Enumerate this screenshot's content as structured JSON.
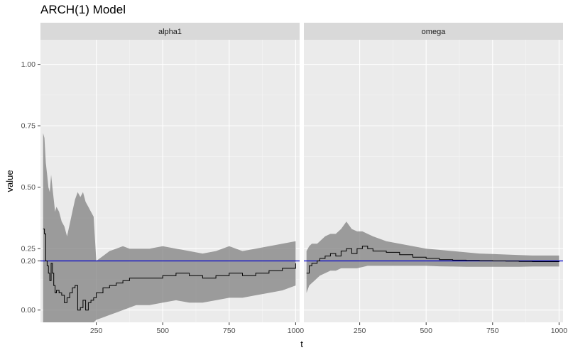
{
  "chart_data": {
    "type": "line",
    "title": "ARCH(1) Model",
    "xlabel": "t",
    "ylabel": "value",
    "xlim": [
      40,
      1015
    ],
    "ylim": [
      -0.05,
      1.1
    ],
    "x_ticks": [
      250,
      500,
      750,
      1000
    ],
    "y_ticks": [
      0.0,
      0.2,
      0.25,
      0.5,
      0.75,
      1.0
    ],
    "y_tick_labels": [
      "0.00",
      "0.20",
      "0.25",
      "0.50",
      "0.75",
      "1.00"
    ],
    "grid": true,
    "reference_line": {
      "y": 0.2,
      "color": "#0000cc"
    },
    "series_color": "#000000",
    "band_color": "#808080",
    "panels": [
      {
        "name": "alpha1",
        "x": [
          50,
          55,
          60,
          65,
          70,
          75,
          80,
          85,
          90,
          95,
          100,
          110,
          120,
          130,
          140,
          150,
          160,
          170,
          180,
          190,
          200,
          210,
          220,
          230,
          240,
          250,
          275,
          300,
          325,
          350,
          375,
          400,
          450,
          500,
          550,
          600,
          650,
          700,
          750,
          800,
          850,
          900,
          950,
          1000
        ],
        "values": [
          0.33,
          0.31,
          0.2,
          0.18,
          0.15,
          0.12,
          0.19,
          0.15,
          0.1,
          0.07,
          0.08,
          0.07,
          0.06,
          0.03,
          0.05,
          0.07,
          0.09,
          0.1,
          0.0,
          0.01,
          0.04,
          0.0,
          0.03,
          0.04,
          0.05,
          0.07,
          0.09,
          0.1,
          0.11,
          0.12,
          0.13,
          0.13,
          0.13,
          0.14,
          0.15,
          0.14,
          0.13,
          0.14,
          0.15,
          0.14,
          0.15,
          0.16,
          0.17,
          0.19
        ],
        "lower": [
          -0.05,
          -0.05,
          -0.05,
          -0.05,
          -0.05,
          -0.05,
          -0.05,
          -0.05,
          -0.05,
          -0.05,
          -0.05,
          -0.05,
          -0.05,
          -0.05,
          -0.05,
          -0.05,
          -0.05,
          -0.05,
          -0.05,
          -0.05,
          -0.05,
          -0.05,
          -0.05,
          -0.05,
          -0.05,
          -0.04,
          -0.03,
          -0.02,
          -0.01,
          0.0,
          0.01,
          0.02,
          0.02,
          0.03,
          0.04,
          0.03,
          0.03,
          0.04,
          0.05,
          0.05,
          0.06,
          0.07,
          0.08,
          0.1
        ],
        "upper": [
          0.72,
          0.7,
          0.6,
          0.55,
          0.5,
          0.48,
          0.55,
          0.5,
          0.45,
          0.4,
          0.42,
          0.4,
          0.36,
          0.34,
          0.3,
          0.35,
          0.4,
          0.45,
          0.48,
          0.46,
          0.48,
          0.44,
          0.42,
          0.4,
          0.38,
          0.2,
          0.22,
          0.24,
          0.25,
          0.26,
          0.25,
          0.25,
          0.25,
          0.26,
          0.25,
          0.24,
          0.23,
          0.24,
          0.26,
          0.24,
          0.25,
          0.26,
          0.27,
          0.28
        ]
      },
      {
        "name": "omega",
        "x": [
          50,
          60,
          70,
          80,
          90,
          100,
          120,
          140,
          160,
          180,
          200,
          220,
          240,
          260,
          280,
          300,
          350,
          400,
          450,
          500,
          550,
          600,
          650,
          700,
          750,
          800,
          850,
          900,
          950,
          1000
        ],
        "values": [
          0.15,
          0.18,
          0.19,
          0.19,
          0.2,
          0.21,
          0.22,
          0.23,
          0.22,
          0.24,
          0.25,
          0.23,
          0.25,
          0.26,
          0.25,
          0.24,
          0.235,
          0.225,
          0.215,
          0.21,
          0.205,
          0.203,
          0.202,
          0.201,
          0.2,
          0.199,
          0.198,
          0.197,
          0.197,
          0.198
        ],
        "lower": [
          0.07,
          0.1,
          0.11,
          0.12,
          0.13,
          0.14,
          0.15,
          0.16,
          0.16,
          0.17,
          0.17,
          0.17,
          0.17,
          0.175,
          0.18,
          0.18,
          0.18,
          0.18,
          0.18,
          0.18,
          0.178,
          0.177,
          0.176,
          0.176,
          0.176,
          0.176,
          0.176,
          0.177,
          0.177,
          0.177
        ],
        "upper": [
          0.24,
          0.26,
          0.27,
          0.27,
          0.27,
          0.28,
          0.3,
          0.31,
          0.31,
          0.33,
          0.36,
          0.33,
          0.32,
          0.32,
          0.31,
          0.3,
          0.28,
          0.27,
          0.26,
          0.25,
          0.245,
          0.24,
          0.235,
          0.23,
          0.228,
          0.226,
          0.224,
          0.222,
          0.222,
          0.222
        ]
      }
    ]
  }
}
